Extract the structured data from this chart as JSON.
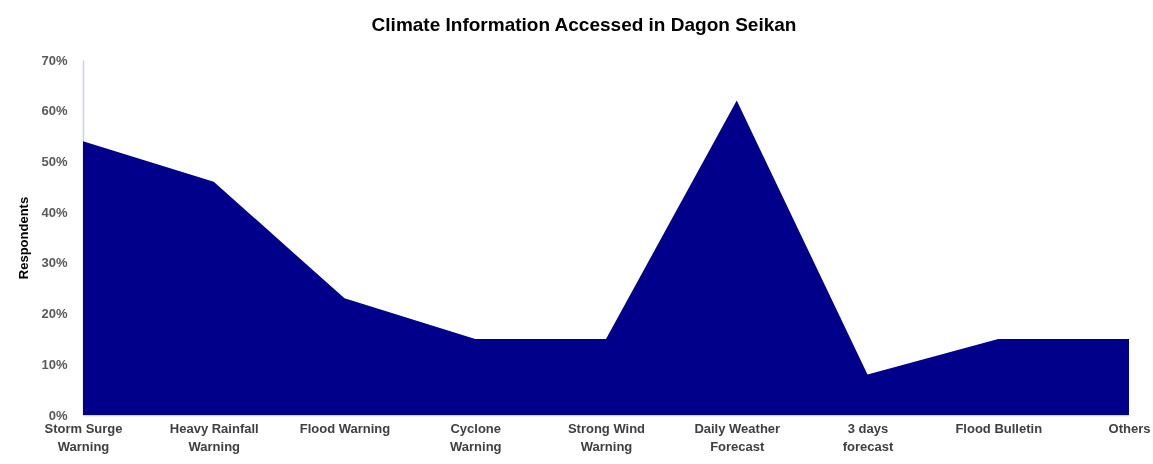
{
  "chart_data": {
    "type": "area",
    "title": "Climate Information Accessed in Dagon Seikan",
    "ylabel": "Respondents",
    "categories": [
      "Storm Surge Warning",
      "Heavy Rainfall Warning",
      "Flood Warning",
      "Cyclone Warning",
      "Strong Wind Warning",
      "Daily Weather Forecast",
      "3 days forecast",
      "Flood Bulletin",
      "Others"
    ],
    "series": [
      {
        "color": "#00008b",
        "values": [
          54,
          46,
          23,
          15,
          15,
          62,
          8,
          15,
          15
        ]
      }
    ],
    "ylim": [
      0,
      70
    ],
    "yticks": [
      {
        "value": 0,
        "label": "0%"
      },
      {
        "value": 10,
        "label": "10%"
      },
      {
        "value": 20,
        "label": "20%"
      },
      {
        "value": 30,
        "label": "30%"
      },
      {
        "value": 40,
        "label": "40%"
      },
      {
        "value": 50,
        "label": "50%"
      },
      {
        "value": 60,
        "label": "60%"
      },
      {
        "value": 70,
        "label": "70%"
      }
    ]
  }
}
